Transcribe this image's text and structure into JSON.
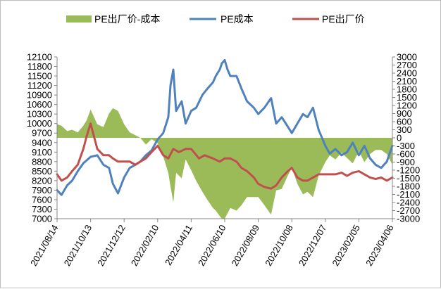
{
  "chart_data": {
    "type": "line",
    "title": "",
    "left_axis": {
      "ticks": [
        "7000",
        "7300",
        "7600",
        "7900",
        "8200",
        "8500",
        "8800",
        "9100",
        "9400",
        "9700",
        "10000",
        "10300",
        "10600",
        "10900",
        "11200",
        "11500",
        "11800",
        "12100"
      ],
      "range": [
        7000,
        12100
      ]
    },
    "right_axis": {
      "ticks": [
        "-3000",
        "-2700",
        "-2400",
        "-2100",
        "-1800",
        "-1500",
        "-1200",
        "-900",
        "-600",
        "-300",
        "0",
        "300",
        "600",
        "900",
        "1200",
        "1500",
        "1800",
        "2100",
        "2400",
        "2700",
        "3000"
      ],
      "range": [
        -3000,
        3000
      ]
    },
    "x_ticks": [
      "2021/08/14",
      "2021/10/13",
      "2021/12/12",
      "2022/02/10",
      "2022/04/11",
      "2022/06/10",
      "2022/08/09",
      "2022/10/08",
      "2022/12/07",
      "2023/02/05",
      "2023/04/06"
    ],
    "legend": {
      "placement": "top",
      "items": [
        {
          "label": "PE出厂价-成本",
          "color": "#9bbb59",
          "kind": "area"
        },
        {
          "label": "PE成本",
          "color": "#4f81bd",
          "kind": "line"
        },
        {
          "label": "PE出厂价",
          "color": "#c0504d",
          "kind": "line"
        }
      ]
    },
    "series": [
      {
        "name": "PE成本",
        "axis": "left",
        "color": "#4f81bd",
        "x": [
          "2021/08/14",
          "2021/08/22",
          "2021/09/01",
          "2021/09/10",
          "2021/09/20",
          "2021/09/30",
          "2021/10/13",
          "2021/10/25",
          "2021/11/05",
          "2021/11/15",
          "2021/11/22",
          "2021/12/01",
          "2021/12/12",
          "2021/12/22",
          "2022/01/01",
          "2022/01/10",
          "2022/01/20",
          "2022/01/30",
          "2022/02/10",
          "2022/02/20",
          "2022/03/01",
          "2022/03/05",
          "2022/03/10",
          "2022/03/15",
          "2022/03/25",
          "2022/04/01",
          "2022/04/11",
          "2022/04/20",
          "2022/05/01",
          "2022/05/10",
          "2022/05/20",
          "2022/05/25",
          "2022/06/01",
          "2022/06/05",
          "2022/06/10",
          "2022/06/15",
          "2022/06/20",
          "2022/07/01",
          "2022/07/10",
          "2022/07/20",
          "2022/08/01",
          "2022/08/09",
          "2022/08/20",
          "2022/09/01",
          "2022/09/10",
          "2022/09/20",
          "2022/10/01",
          "2022/10/08",
          "2022/10/18",
          "2022/10/28",
          "2022/11/05",
          "2022/11/15",
          "2022/11/25",
          "2022/12/07",
          "2022/12/15",
          "2022/12/25",
          "2023/01/05",
          "2023/01/15",
          "2023/01/25",
          "2023/02/05",
          "2023/02/15",
          "2023/02/25",
          "2023/03/07",
          "2023/03/17",
          "2023/03/27",
          "2023/04/06"
        ],
        "values": [
          7900,
          7750,
          8050,
          8200,
          8500,
          8750,
          8950,
          9000,
          8700,
          8600,
          8100,
          7800,
          8300,
          8600,
          8700,
          8800,
          9000,
          9150,
          9500,
          9700,
          10200,
          11200,
          11700,
          10400,
          10700,
          10000,
          10400,
          10500,
          10900,
          11100,
          11300,
          11500,
          11700,
          11900,
          12000,
          11700,
          11500,
          11500,
          11100,
          10700,
          10500,
          10300,
          10500,
          10800,
          10000,
          10200,
          9900,
          9700,
          10000,
          10300,
          10200,
          10500,
          9800,
          9300,
          9050,
          9200,
          9000,
          9100,
          9400,
          9000,
          9300,
          8900,
          8700,
          8600,
          8800,
          9300
        ]
      },
      {
        "name": "PE出厂价",
        "axis": "left",
        "color": "#c0504d",
        "x": [
          "2021/08/14",
          "2021/08/22",
          "2021/09/01",
          "2021/09/10",
          "2021/09/20",
          "2021/09/30",
          "2021/10/06",
          "2021/10/13",
          "2021/10/25",
          "2021/11/05",
          "2021/11/15",
          "2021/11/22",
          "2021/12/01",
          "2021/12/12",
          "2021/12/22",
          "2022/01/01",
          "2022/01/10",
          "2022/01/20",
          "2022/01/30",
          "2022/02/10",
          "2022/02/20",
          "2022/03/01",
          "2022/03/10",
          "2022/03/20",
          "2022/04/01",
          "2022/04/11",
          "2022/04/25",
          "2022/05/05",
          "2022/05/20",
          "2022/06/01",
          "2022/06/10",
          "2022/06/20",
          "2022/07/01",
          "2022/07/10",
          "2022/07/20",
          "2022/08/01",
          "2022/08/09",
          "2022/08/20",
          "2022/09/01",
          "2022/09/10",
          "2022/09/20",
          "2022/10/01",
          "2022/10/08",
          "2022/10/18",
          "2022/10/28",
          "2022/11/05",
          "2022/11/15",
          "2022/11/25",
          "2022/12/07",
          "2022/12/15",
          "2022/12/25",
          "2023/01/05",
          "2023/01/15",
          "2023/01/25",
          "2023/02/05",
          "2023/02/15",
          "2023/02/25",
          "2023/03/07",
          "2023/03/17",
          "2023/03/27",
          "2023/04/06"
        ],
        "values": [
          8400,
          8200,
          8300,
          8500,
          8700,
          9200,
          9600,
          10000,
          9200,
          9000,
          9000,
          8900,
          8800,
          8800,
          8800,
          8700,
          8800,
          8900,
          9100,
          9300,
          9000,
          8900,
          9200,
          9100,
          9200,
          9200,
          8900,
          9000,
          8900,
          8800,
          8900,
          8900,
          8800,
          8600,
          8500,
          8300,
          8100,
          8000,
          7950,
          8050,
          8300,
          8500,
          8600,
          8300,
          8200,
          8200,
          8300,
          8400,
          8400,
          8400,
          8400,
          8450,
          8350,
          8450,
          8500,
          8400,
          8300,
          8250,
          8300,
          8200,
          8300
        ]
      },
      {
        "name": "PE出厂价-成本",
        "axis": "right",
        "color": "#9bbb59",
        "x": [
          "2021/08/14",
          "2021/08/22",
          "2021/09/01",
          "2021/09/10",
          "2021/09/20",
          "2021/09/30",
          "2021/10/06",
          "2021/10/13",
          "2021/10/25",
          "2021/11/05",
          "2021/11/15",
          "2021/11/22",
          "2021/12/01",
          "2021/12/12",
          "2021/12/22",
          "2022/01/01",
          "2022/01/10",
          "2022/01/20",
          "2022/01/30",
          "2022/02/10",
          "2022/02/20",
          "2022/03/01",
          "2022/03/05",
          "2022/03/10",
          "2022/03/15",
          "2022/03/25",
          "2022/04/01",
          "2022/04/11",
          "2022/04/20",
          "2022/05/01",
          "2022/05/10",
          "2022/05/20",
          "2022/05/25",
          "2022/06/01",
          "2022/06/05",
          "2022/06/10",
          "2022/06/15",
          "2022/06/20",
          "2022/07/01",
          "2022/07/10",
          "2022/07/20",
          "2022/08/01",
          "2022/08/09",
          "2022/08/20",
          "2022/09/01",
          "2022/09/10",
          "2022/09/20",
          "2022/10/01",
          "2022/10/08",
          "2022/10/18",
          "2022/10/28",
          "2022/11/05",
          "2022/11/15",
          "2022/11/25",
          "2022/12/07",
          "2022/12/15",
          "2022/12/25",
          "2023/01/05",
          "2023/01/15",
          "2023/01/25",
          "2023/02/05",
          "2023/02/15",
          "2023/02/25",
          "2023/03/07",
          "2023/03/17",
          "2023/03/27",
          "2023/04/06"
        ],
        "values": [
          500,
          450,
          250,
          300,
          200,
          450,
          650,
          1050,
          500,
          400,
          900,
          1100,
          1000,
          500,
          200,
          100,
          0,
          -250,
          -50,
          -200,
          -700,
          -1300,
          -1800,
          -2400,
          -1300,
          -1500,
          -800,
          -1200,
          -1600,
          -2000,
          -2300,
          -2600,
          -2700,
          -2900,
          -3000,
          -3000,
          -2800,
          -2600,
          -2700,
          -2500,
          -2200,
          -2200,
          -2200,
          -2500,
          -2850,
          -1950,
          -1900,
          -1400,
          -1100,
          -1700,
          -2100,
          -2000,
          -2200,
          -1400,
          -900,
          -650,
          -800,
          -550,
          -750,
          -950,
          -500,
          -900,
          -600,
          -450,
          -450,
          -600,
          -1000
        ]
      }
    ]
  }
}
